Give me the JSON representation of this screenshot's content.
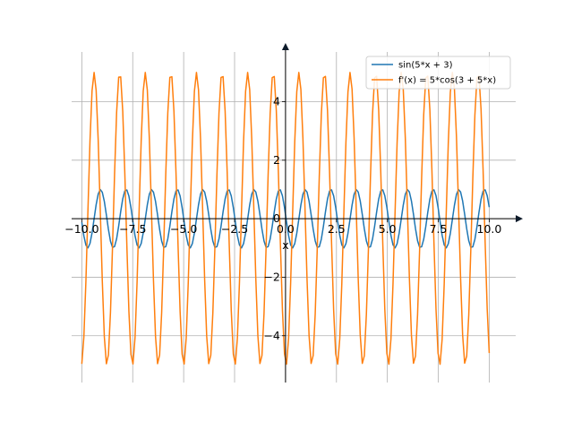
{
  "chart_data": {
    "type": "line",
    "xlabel": "x",
    "ylabel": "",
    "xlim": [
      -10.5,
      11.3
    ],
    "ylim": [
      -5.6,
      5.7
    ],
    "grid": true,
    "legend_position": "top-right",
    "x_ticks": [
      -10.0,
      -7.5,
      -5.0,
      -2.5,
      0.0,
      2.5,
      5.0,
      7.5,
      10.0
    ],
    "x_tick_labels": [
      "−10.0",
      "−7.5",
      "−5.0",
      "−2.5",
      "0.0",
      "2.5",
      "5.0",
      "7.5",
      "10.0"
    ],
    "y_ticks": [
      -4,
      -2,
      0,
      2,
      4
    ],
    "y_tick_labels": [
      "−4",
      "−2",
      "0",
      "2",
      "4"
    ],
    "series": [
      {
        "name": "sin(5*x + 3)",
        "color": "#1f77b4",
        "amplitude": 1,
        "frequency": 5,
        "phase": 3,
        "function": "sin",
        "x_range": [
          -10,
          10
        ]
      },
      {
        "name": "f'(x) = 5*cos(3 + 5*x)",
        "color": "#ff7f0e",
        "amplitude": 5,
        "frequency": 5,
        "phase": 3,
        "function": "cos",
        "x_range": [
          -10,
          10
        ]
      }
    ]
  }
}
